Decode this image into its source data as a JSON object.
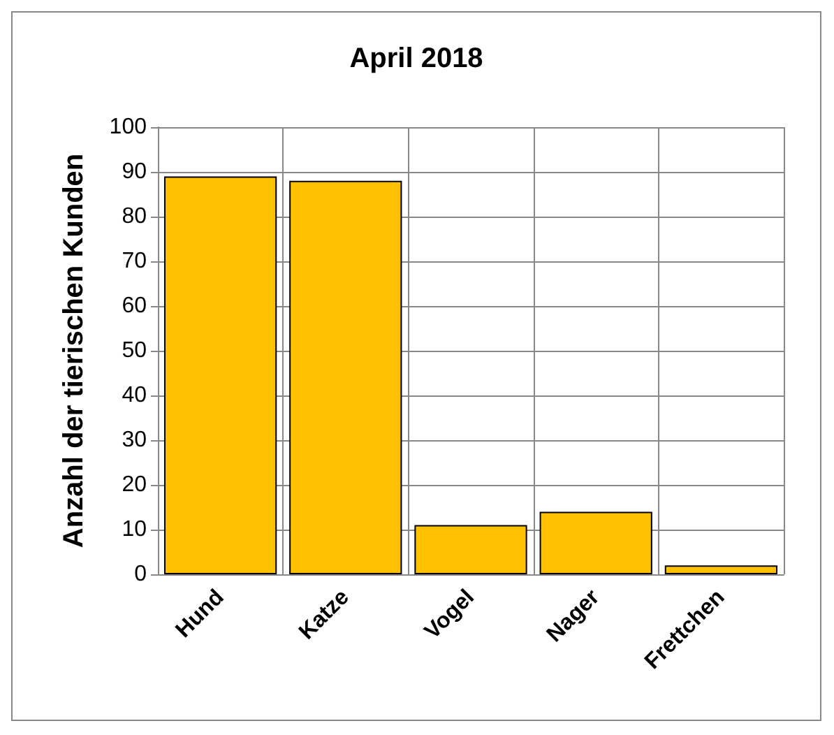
{
  "chart_data": {
    "type": "bar",
    "title": "April 2018",
    "ylabel": "Anzahl der tierischen Kunden",
    "categories": [
      "Hund",
      "Katze",
      "Vogel",
      "Nager",
      "Frettchen"
    ],
    "values": [
      89,
      88,
      11,
      14,
      2
    ],
    "color": "#ffc000",
    "ylim": [
      0,
      100
    ],
    "yticks": [
      0,
      10,
      20,
      30,
      40,
      50,
      60,
      70,
      80,
      90,
      100
    ],
    "grid": true
  }
}
